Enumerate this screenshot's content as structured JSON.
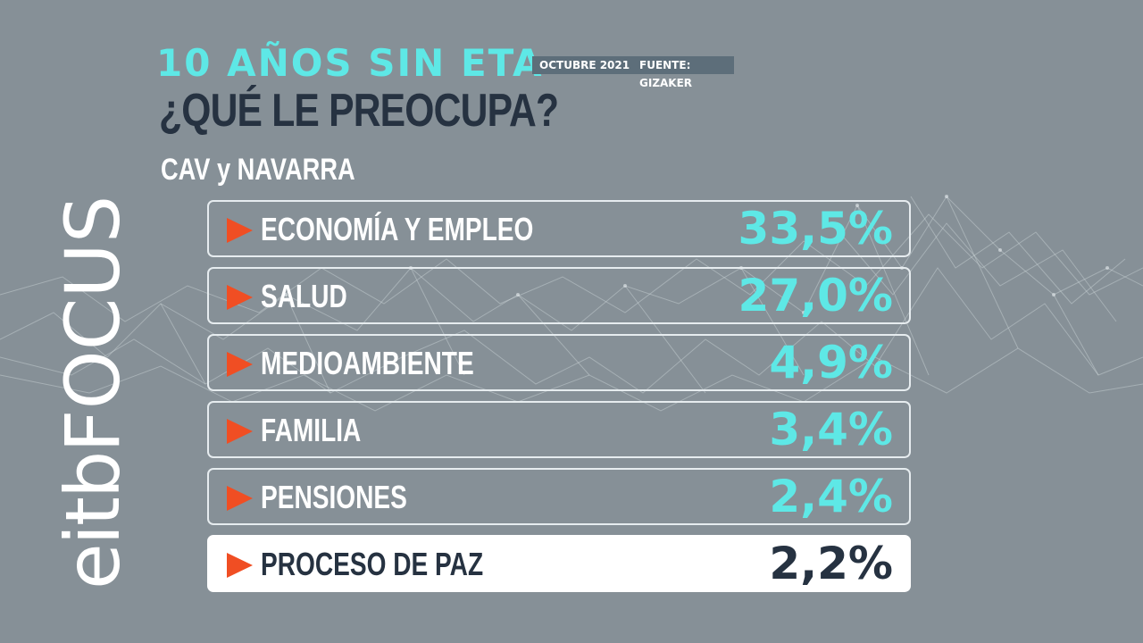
{
  "header": {
    "title": "10 AÑOS SIN ETA",
    "date": "OCTUBRE 2021",
    "source": "FUENTE: GIZAKER",
    "question": "¿QUÉ LE PREOCUPA?",
    "region": "CAV y NAVARRA"
  },
  "logo": {
    "part1": "eitb",
    "part2": "FOCUS"
  },
  "rows": [
    {
      "label": "ECONOMÍA Y EMPLEO",
      "value": "33,5%"
    },
    {
      "label": "SALUD",
      "value": "27,0%"
    },
    {
      "label": "MEDIOAMBIENTE",
      "value": "4,9%"
    },
    {
      "label": "FAMILIA",
      "value": "3,4%"
    },
    {
      "label": "PENSIONES",
      "value": "2,4%"
    },
    {
      "label": "PROCESO DE PAZ",
      "value": "2,2%"
    }
  ],
  "colors": {
    "background": "#869097",
    "accent": "#5ee8e6",
    "dark": "#263241",
    "arrow": "#f04e23"
  },
  "icons": {
    "row_marker": "orange-triangle-arrow-icon",
    "logo_magnifier": "magnifier-icon"
  }
}
